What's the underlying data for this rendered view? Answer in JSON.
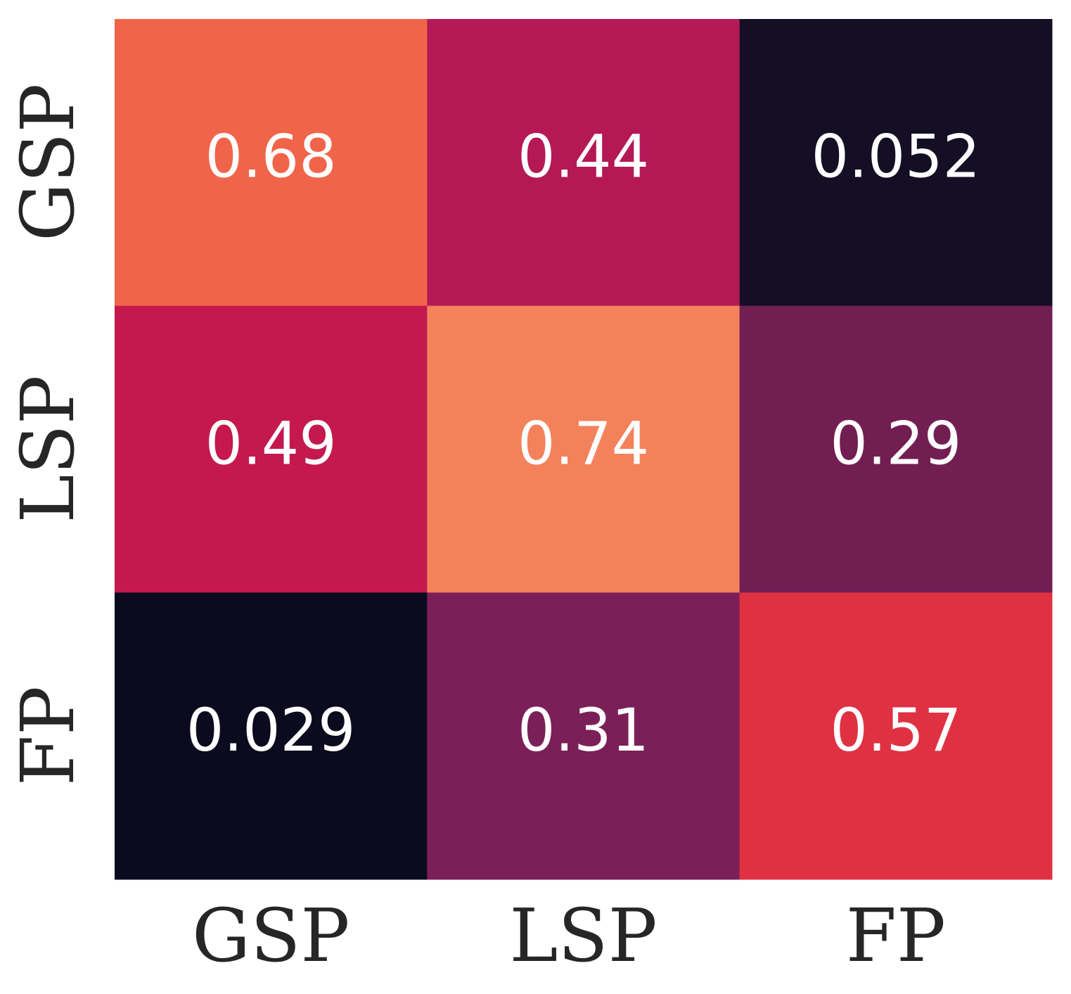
{
  "chart_data": {
    "type": "heatmap",
    "x_categories": [
      "GSP",
      "LSP",
      "FP"
    ],
    "y_categories": [
      "GSP",
      "LSP",
      "FP"
    ],
    "values": [
      [
        0.68,
        0.44,
        0.052
      ],
      [
        0.49,
        0.74,
        0.29
      ],
      [
        0.029,
        0.31,
        0.57
      ]
    ],
    "value_labels": [
      [
        "0.68",
        "0.44",
        "0.052"
      ],
      [
        "0.49",
        "0.74",
        "0.29"
      ],
      [
        "0.029",
        "0.31",
        "0.57"
      ]
    ],
    "cell_colors": [
      [
        "#f0654a",
        "#b41956",
        "#140f24"
      ],
      [
        "#c4184f",
        "#f3825b",
        "#721e53"
      ],
      [
        "#0c0a1f",
        "#7b1f58",
        "#e03143"
      ]
    ],
    "colormap": "rocket",
    "colorbar": false,
    "grid": false,
    "title": "",
    "xlabel": "",
    "ylabel": ""
  }
}
